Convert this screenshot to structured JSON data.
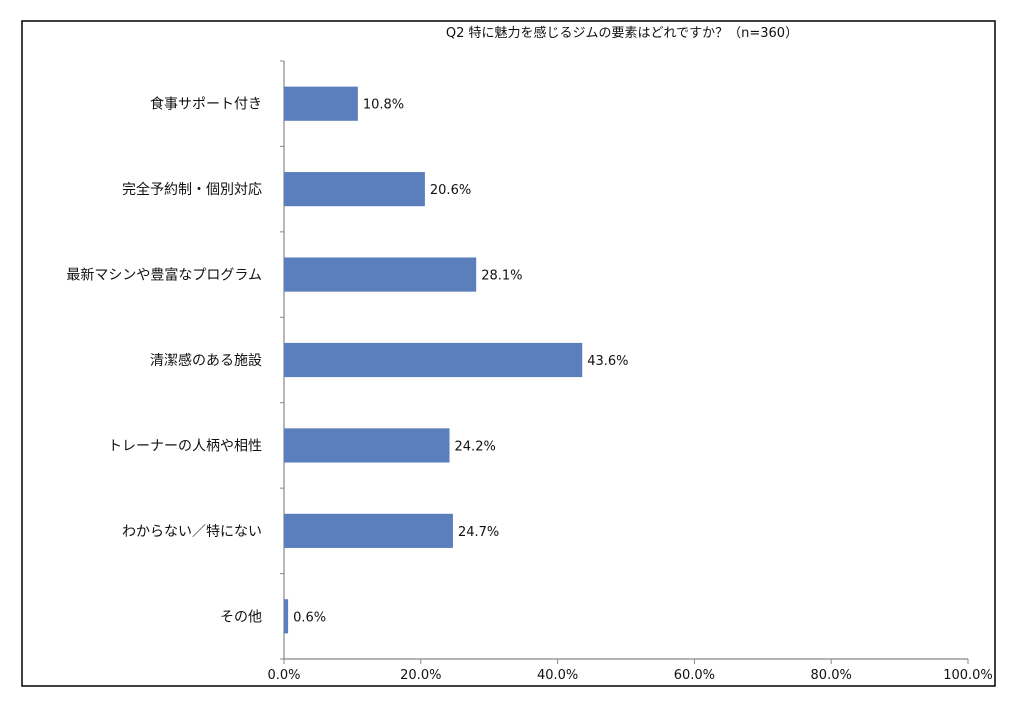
{
  "chart_data": {
    "type": "bar",
    "orientation": "horizontal",
    "title": "Q2 特に魅力を感じるジムの要素はどれですか？（n=360）",
    "categories": [
      "食事サポート付き",
      "完全予約制・個別対応",
      "最新マシンや豊富なプログラム",
      "清潔感のある施設",
      "トレーナーの人柄や相性",
      "わからない／特にない",
      "その他"
    ],
    "values": [
      10.8,
      20.6,
      28.1,
      43.6,
      24.2,
      24.7,
      0.6
    ],
    "value_labels": [
      "10.8%",
      "20.6%",
      "28.1%",
      "43.6%",
      "24.2%",
      "24.7%",
      "0.6%"
    ],
    "xlim": [
      0,
      100
    ],
    "x_ticks": [
      0,
      20,
      40,
      60,
      80,
      100
    ],
    "x_tick_labels": [
      "0.0%",
      "20.0%",
      "40.0%",
      "60.0%",
      "80.0%",
      "100.0%"
    ],
    "grid": false,
    "legend": "none",
    "bar_color": "#5b7fbc",
    "xlabel": "",
    "ylabel": ""
  }
}
